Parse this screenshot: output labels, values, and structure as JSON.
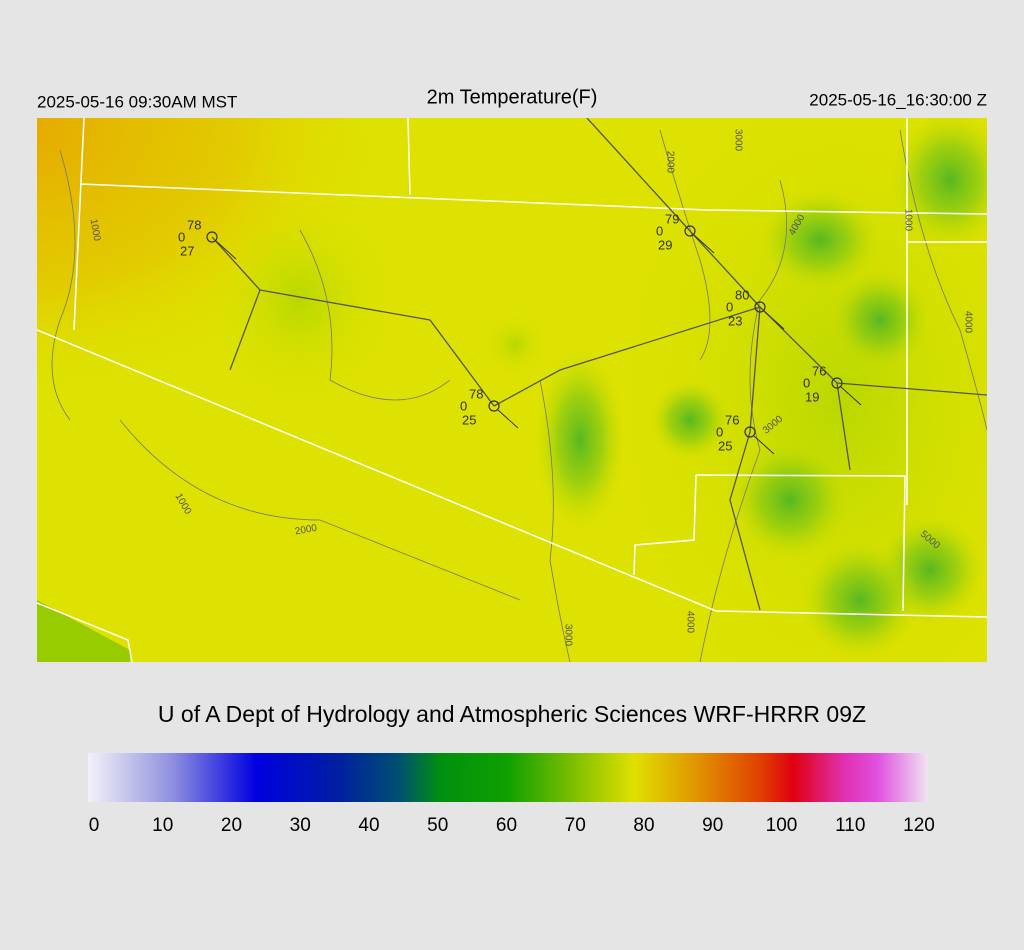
{
  "header": {
    "local_time": "2025-05-16 09:30AM MST",
    "title": "2m Temperature(F)",
    "utc_time": "2025-05-16_16:30:00 Z"
  },
  "stations": [
    {
      "temp": 78,
      "wind": 0,
      "dewpoint": 27
    },
    {
      "temp": 79,
      "wind": 0,
      "dewpoint": 29
    },
    {
      "temp": 80,
      "wind": 0,
      "dewpoint": 23
    },
    {
      "temp": 76,
      "wind": 0,
      "dewpoint": 19
    },
    {
      "temp": 78,
      "wind": 0,
      "dewpoint": 25
    },
    {
      "temp": 76,
      "wind": 0,
      "dewpoint": 25
    }
  ],
  "contour_labels": [
    "1000",
    "2000",
    "3000",
    "4000",
    "1000",
    "4000",
    "3000",
    "1000",
    "2000",
    "5000",
    "4000",
    "3000"
  ],
  "footer": {
    "title": "U of A Dept of Hydrology and Atmospheric Sciences WRF-HRRR 09Z"
  },
  "colorbar": {
    "ticks": [
      0,
      10,
      20,
      30,
      40,
      50,
      60,
      70,
      80,
      90,
      100,
      110,
      120
    ]
  }
}
